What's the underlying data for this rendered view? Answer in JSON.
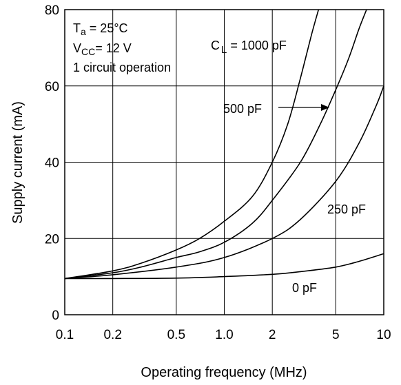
{
  "chart_data": {
    "type": "line",
    "title": "",
    "xlabel": "Operating frequency (MHz)",
    "ylabel": "Supply current (mA)",
    "x_scale": "log",
    "xlim": [
      0.1,
      10
    ],
    "ylim": [
      0,
      80
    ],
    "x_ticks": [
      "0.1",
      "0.2",
      "0.5",
      "1.0",
      "2",
      "5",
      "10"
    ],
    "y_ticks": [
      "0",
      "20",
      "40",
      "60",
      "80"
    ],
    "grid": true,
    "conditions": {
      "ta_symbol": "T",
      "ta_sub": "a",
      "ta_value": " = 25°C",
      "vcc_symbol": "V",
      "vcc_sub": "CC",
      "vcc_value": "= 12 V",
      "circuit": "1 circuit operation"
    },
    "series": [
      {
        "label_symbol": "C",
        "label_sub": "L",
        "label": " = 1000 pF",
        "points": [
          [
            0.1,
            9.5
          ],
          [
            0.2,
            11.5
          ],
          [
            0.3,
            13.5
          ],
          [
            0.5,
            17
          ],
          [
            0.7,
            20
          ],
          [
            1.0,
            24.5
          ],
          [
            1.5,
            31
          ],
          [
            2.0,
            40
          ],
          [
            2.5,
            50
          ],
          [
            3.0,
            62
          ],
          [
            3.5,
            73
          ],
          [
            3.9,
            80
          ]
        ]
      },
      {
        "label": "500 pF",
        "points": [
          [
            0.1,
            9.5
          ],
          [
            0.2,
            11
          ],
          [
            0.3,
            12.5
          ],
          [
            0.5,
            15
          ],
          [
            0.7,
            16.5
          ],
          [
            1.0,
            19
          ],
          [
            1.5,
            24
          ],
          [
            2.0,
            30
          ],
          [
            3.0,
            40
          ],
          [
            4.0,
            50
          ],
          [
            5.0,
            59
          ],
          [
            6.0,
            67
          ],
          [
            7.0,
            75
          ],
          [
            7.8,
            80
          ]
        ]
      },
      {
        "label": "250 pF",
        "points": [
          [
            0.1,
            9.5
          ],
          [
            0.2,
            10.5
          ],
          [
            0.5,
            12.5
          ],
          [
            1.0,
            15
          ],
          [
            2.0,
            20
          ],
          [
            3.0,
            25
          ],
          [
            5.0,
            35
          ],
          [
            7.0,
            45
          ],
          [
            9.0,
            55
          ],
          [
            10,
            60
          ]
        ]
      },
      {
        "label": "0 pF",
        "points": [
          [
            0.1,
            9.5
          ],
          [
            0.2,
            9.5
          ],
          [
            0.5,
            9.6
          ],
          [
            1.0,
            10
          ],
          [
            2.0,
            10.6
          ],
          [
            3.0,
            11.3
          ],
          [
            5.0,
            12.5
          ],
          [
            7.0,
            14
          ],
          [
            10,
            16
          ]
        ]
      }
    ]
  }
}
